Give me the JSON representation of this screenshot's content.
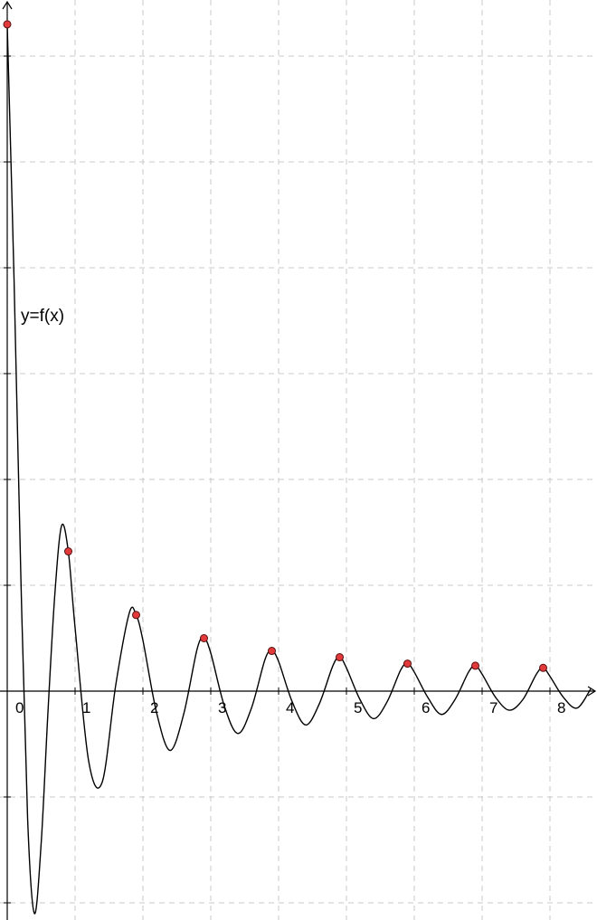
{
  "chart_data": {
    "type": "line",
    "title": "",
    "xlabel": "",
    "ylabel": "",
    "xlim": [
      -0.12,
      8.6
    ],
    "ylim": [
      -1.08,
      3.15
    ],
    "x_ticks": [
      0,
      1,
      2,
      3,
      4,
      5,
      6,
      7,
      8
    ],
    "x_tick_labels": [
      "0",
      "1",
      "2",
      "3",
      "4",
      "5",
      "6",
      "7",
      "8"
    ],
    "y_ticks": [
      -1,
      -0.5,
      0.5,
      1,
      1.5,
      2,
      2.5,
      3
    ],
    "grid": true,
    "function_label": "y=f(x)",
    "series": [
      {
        "label": "y=f(x)",
        "x": [
          0,
          0.1,
          0.2,
          0.3,
          0.4,
          0.5,
          0.6,
          0.7,
          0.8,
          0.9,
          1.0,
          1.2,
          1.4,
          1.6,
          1.8,
          1.9,
          2.0,
          2.2,
          2.4,
          2.6,
          2.8,
          2.9,
          3.0,
          3.2,
          3.4,
          3.6,
          3.8,
          3.9,
          4.0,
          4.2,
          4.4,
          4.6,
          4.8,
          4.9,
          5.0,
          5.2,
          5.4,
          5.6,
          5.8,
          5.9,
          6.0,
          6.2,
          6.4,
          6.6,
          6.8,
          6.9,
          7.0,
          7.2,
          7.4,
          7.6,
          7.8,
          7.9,
          8.0,
          8.2,
          8.4,
          8.6
        ],
        "y": [
          3.15,
          1.95,
          0.55,
          -0.6,
          -1.05,
          -0.72,
          -0.1,
          0.45,
          0.78,
          0.66,
          0.3,
          -0.33,
          -0.43,
          0.03,
          0.37,
          0.36,
          0.24,
          -0.1,
          -0.28,
          -0.11,
          0.2,
          0.25,
          0.18,
          -0.07,
          -0.2,
          -0.08,
          0.15,
          0.19,
          0.14,
          -0.05,
          -0.16,
          -0.06,
          0.12,
          0.16,
          0.11,
          -0.04,
          -0.13,
          -0.05,
          0.1,
          0.13,
          0.09,
          -0.03,
          -0.11,
          -0.04,
          0.09,
          0.12,
          0.08,
          -0.03,
          -0.09,
          -0.04,
          0.08,
          0.11,
          0.07,
          -0.03,
          -0.08,
          0.01
        ]
      }
    ],
    "highlighted_points": [
      {
        "x": 0,
        "y": 3.15
      },
      {
        "x": 0.9,
        "y": 0.66
      },
      {
        "x": 1.9,
        "y": 0.36
      },
      {
        "x": 2.9,
        "y": 0.25
      },
      {
        "x": 3.9,
        "y": 0.19
      },
      {
        "x": 4.9,
        "y": 0.16
      },
      {
        "x": 5.9,
        "y": 0.13
      },
      {
        "x": 6.9,
        "y": 0.12
      },
      {
        "x": 7.9,
        "y": 0.11
      }
    ],
    "colors": {
      "curve": "#000000",
      "marker_fill": "#e23a3a",
      "marker_stroke": "#5a1010",
      "grid": "#c9c9c9",
      "axis": "#000000"
    }
  }
}
